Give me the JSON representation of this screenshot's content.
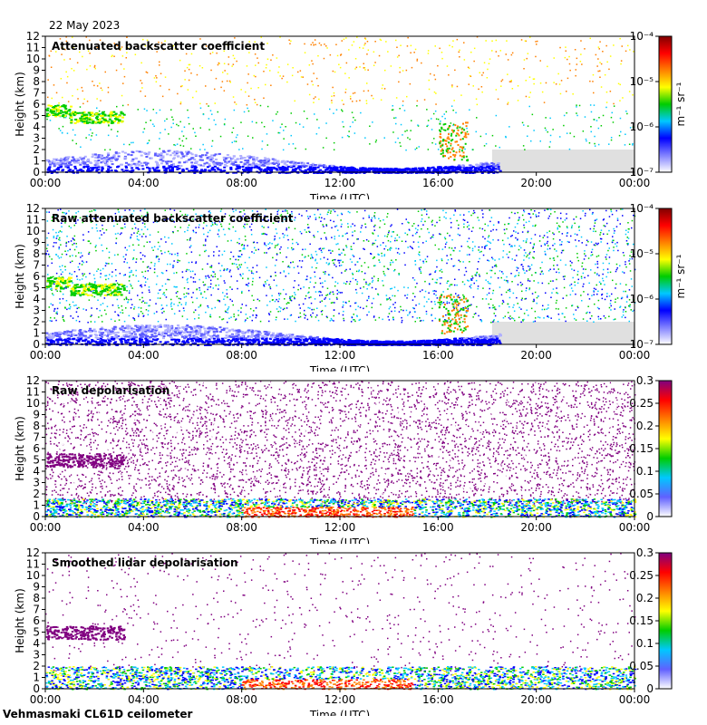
{
  "header": {
    "date": "22 May 2023"
  },
  "footer": {
    "instrument": "Vehmasmaki CL61D ceilometer"
  },
  "colors": {
    "no_data": "#e0e0e0",
    "colormap": [
      "#ffffff",
      "#5b5bff",
      "#0000ff",
      "#00c8ff",
      "#00cc00",
      "#ffff00",
      "#ff8000",
      "#ff0000",
      "#800080"
    ]
  },
  "chart_data": [
    {
      "type": "heatmap",
      "title": "Attenuated backscatter coefficient",
      "xlabel": "Time (UTC)",
      "ylabel": "Height (km)",
      "x_ticks": [
        "00:00",
        "04:00",
        "08:00",
        "12:00",
        "16:00",
        "20:00",
        "00:00"
      ],
      "y_ticks": [
        "0",
        "1",
        "2",
        "3",
        "4",
        "5",
        "6",
        "7",
        "8",
        "9",
        "10",
        "11",
        "12"
      ],
      "ylim": [
        0,
        12
      ],
      "colorbar": {
        "scale": "log",
        "ticks": [
          "10⁻⁷",
          "10⁻⁶",
          "10⁻⁵",
          "10⁻⁴"
        ],
        "unit": "m⁻¹ sr⁻¹"
      },
      "features": [
        "aerosol layer 0–2 km",
        "cloud ~5 km 00:00–03:00",
        "cloud ~4 km 16:00–17:00",
        "no data after ~18:00 below 2 km"
      ]
    },
    {
      "type": "heatmap",
      "title": "Raw attenuated backscatter coefficient",
      "xlabel": "Time (UTC)",
      "ylabel": "Height (km)",
      "x_ticks": [
        "00:00",
        "04:00",
        "08:00",
        "12:00",
        "16:00",
        "20:00",
        "00:00"
      ],
      "y_ticks": [
        "0",
        "1",
        "2",
        "3",
        "4",
        "5",
        "6",
        "7",
        "8",
        "9",
        "10",
        "11",
        "12"
      ],
      "ylim": [
        0,
        12
      ],
      "colorbar": {
        "scale": "log",
        "ticks": [
          "10⁻⁷",
          "10⁻⁶",
          "10⁻⁵",
          "10⁻⁴"
        ],
        "unit": "m⁻¹ sr⁻¹"
      }
    },
    {
      "type": "heatmap",
      "title": "Raw depolarisation",
      "xlabel": "Time (UTC)",
      "ylabel": "Height (km)",
      "x_ticks": [
        "00:00",
        "04:00",
        "08:00",
        "12:00",
        "16:00",
        "20:00",
        "00:00"
      ],
      "y_ticks": [
        "0",
        "1",
        "2",
        "3",
        "4",
        "5",
        "6",
        "7",
        "8",
        "9",
        "10",
        "11",
        "12"
      ],
      "ylim": [
        0,
        12
      ],
      "colorbar": {
        "scale": "linear",
        "ticks": [
          "0",
          "0.05",
          "0.1",
          "0.15",
          "0.2",
          "0.25",
          "0.3"
        ],
        "range": [
          0,
          0.3
        ]
      }
    },
    {
      "type": "heatmap",
      "title": "Smoothed lidar depolarisation",
      "xlabel": "Time (UTC)",
      "ylabel": "Height (km)",
      "x_ticks": [
        "00:00",
        "04:00",
        "08:00",
        "12:00",
        "16:00",
        "20:00",
        "00:00"
      ],
      "y_ticks": [
        "0",
        "1",
        "2",
        "3",
        "4",
        "5",
        "6",
        "7",
        "8",
        "9",
        "10",
        "11",
        "12"
      ],
      "ylim": [
        0,
        12
      ],
      "colorbar": {
        "scale": "linear",
        "ticks": [
          "0",
          "0.05",
          "0.1",
          "0.15",
          "0.2",
          "0.25",
          "0.3"
        ],
        "range": [
          0,
          0.3
        ]
      }
    }
  ]
}
